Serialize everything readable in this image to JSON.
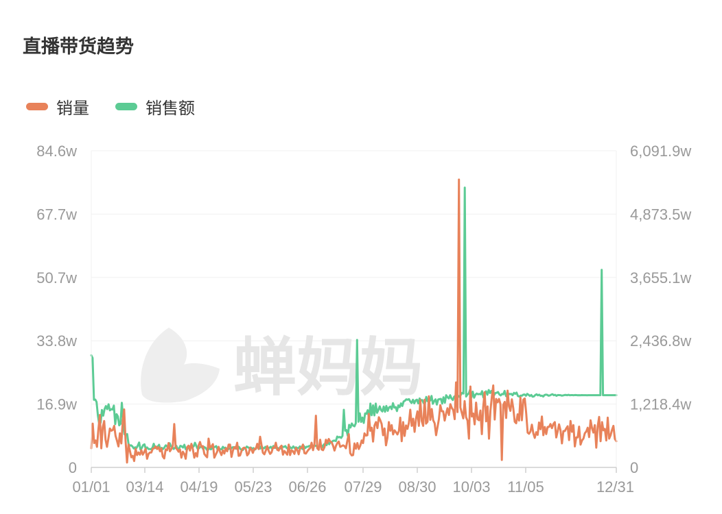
{
  "header": {
    "title": "直播带货趋势"
  },
  "watermark": {
    "text": "蝉妈妈"
  },
  "legend": [
    {
      "label": "销量",
      "color": "#e8825a"
    },
    {
      "label": "销售额",
      "color": "#5ccb94"
    }
  ],
  "chart_data": {
    "type": "line",
    "title": "直播带货趋势",
    "x_tick_labels": [
      "01/01",
      "03/14",
      "04/19",
      "05/23",
      "06/26",
      "07/29",
      "08/30",
      "10/03",
      "11/05",
      "12/31"
    ],
    "y_left": {
      "tick_labels": [
        "0",
        "16.9w",
        "33.8w",
        "50.7w",
        "67.7w",
        "84.6w"
      ],
      "ylim": [
        0,
        84.6
      ],
      "unit": "w"
    },
    "y_right": {
      "tick_labels": [
        "0",
        "1,218.4w",
        "2,436.8w",
        "3,655.1w",
        "4,873.5w",
        "6,091.9w"
      ],
      "ylim": [
        0,
        6091.9
      ],
      "unit": "w"
    },
    "grid": true,
    "legend_position": "top-left",
    "series": [
      {
        "name": "销量",
        "axis": "left",
        "color": "#e8825a",
        "values": [
          5.1,
          11.7,
          6.5,
          7.2,
          5.5,
          10.2,
          14.0,
          5.1,
          10.7,
          12.4,
          7.4,
          5.5,
          7.8,
          10.4,
          9.8,
          10.0,
          11.1,
          8.4,
          7.1,
          5.6,
          9.1,
          6.4,
          12.4,
          15.5,
          7.0,
          1.3,
          6.1,
          4.4,
          2.7,
          3.1,
          1.7,
          5.0,
          3.3,
          4.0,
          3.4,
          4.6,
          3.4,
          4.1,
          5.0,
          2.3,
          3.6,
          4.0,
          4.0,
          5.0,
          5.1,
          5.6,
          4.9,
          5.4,
          4.3,
          5.1,
          2.9,
          2.4,
          4.8,
          4.6,
          6.5,
          4.3,
          4.9,
          5.8,
          11.6,
          5.3,
          4.8,
          4.2,
          4.8,
          2.6,
          4.2,
          3.6,
          2.3,
          5.4,
          5.8,
          4.5,
          6.3,
          4.9,
          2.6,
          3.8,
          2.9,
          5.8,
          6.8,
          5.5,
          5.7,
          3.6,
          3.1,
          2.7,
          7.7,
          5.3,
          5.6,
          6.2,
          2.6,
          3.4,
          4.2,
          5.5,
          4.2,
          3.3,
          4.6,
          3.7,
          5.1,
          4.3,
          6.1,
          6.1,
          2.8,
          4.5,
          5.4,
          5.0,
          6.6,
          3.1,
          3.2,
          4.4,
          5.1,
          5.3,
          4.9,
          3.2,
          3.7,
          5.3,
          4.7,
          3.9,
          5.0,
          4.9,
          6.3,
          4.9,
          8.2,
          5.9,
          3.9,
          3.5,
          4.5,
          5.7,
          4.4,
          3.6,
          4.0,
          5.3,
          5.2,
          6.6,
          4.7,
          4.5,
          5.4,
          5.8,
          3.4,
          4.4,
          3.9,
          3.4,
          6.1,
          3.3,
          4.6,
          4.3,
          3.6,
          5.2,
          4.6,
          3.5,
          5.2,
          5.3,
          6.1,
          3.8,
          3.7,
          4.3,
          4.8,
          5.1,
          6.6,
          4.6,
          6.3,
          13.8,
          5.1,
          4.7,
          7.4,
          4.8,
          4.6,
          5.4,
          7.4,
          6.5,
          7.6,
          6.9,
          6.7,
          5.8,
          4.5,
          5.7,
          6.5,
          6.9,
          5.5,
          5.7,
          5.9,
          5.7,
          5.1,
          7.1,
          8.9,
          3.8,
          3.2,
          3.3,
          6.4,
          5.0,
          6.5,
          4.9,
          5.8,
          7.2,
          6.5,
          9.1,
          8.5,
          8.6,
          14.3,
          9.8,
          10.6,
          6.9,
          11.2,
          12.1,
          10.5,
          13.4,
          12.6,
          11.6,
          8.6,
          10.4,
          5.9,
          7.9,
          12.1,
          9.8,
          11.3,
          8.8,
          9.9,
          9.4,
          8.8,
          9.7,
          13.3,
          7.0,
          12.1,
          8.4,
          11.2,
          10.3,
          11.9,
          15.4,
          11.1,
          13.0,
          9.5,
          13.1,
          15.0,
          11.1,
          18.0,
          12.4,
          11.1,
          18.1,
          11.7,
          12.2,
          19.0,
          12.7,
          15.6,
          12.6,
          11.8,
          8.6,
          10.7,
          12.9,
          16.6,
          15.0,
          15.0,
          12.5,
          14.3,
          15.8,
          14.0,
          16.9,
          15.9,
          15.3,
          12.9,
          22.7,
          14.8,
          76.9,
          16.0,
          14.6,
          13.1,
          17.7,
          13.4,
          12.5,
          7.7,
          21.6,
          13.6,
          14.4,
          11.5,
          17.3,
          12.9,
          12.6,
          15.2,
          8.9,
          16.2,
          20.1,
          12.3,
          16.3,
          7.7,
          15.2,
          18.9,
          21.9,
          12.8,
          18.3,
          17.4,
          18.3,
          16.9,
          2.0,
          16.7,
          17.5,
          13.2,
          20.5,
          16.3,
          15.1,
          18.2,
          15.8,
          12.2,
          11.8,
          14.2,
          12.5,
          18.7,
          12.6,
          18.1,
          18.4,
          14.5,
          9.3,
          9.0,
          9.6,
          11.4,
          9.1,
          7.9,
          9.4,
          8.7,
          12.0,
          10.2,
          13.6,
          8.6,
          10.8,
          8.9,
          10.8,
          10.8,
          11.6,
          10.5,
          11.6,
          12.1,
          8.0,
          9.6,
          11.5,
          9.9,
          6.4,
          9.7,
          9.7,
          10.4,
          11.0,
          7.3,
          12.4,
          9.5,
          11.3,
          5.6,
          8.0,
          8.0,
          10.9,
          6.1,
          7.2,
          7.7,
          9.1,
          9.6,
          10.6,
          8.1,
          12.6,
          10.5,
          9.3,
          11.3,
          5.3,
          11.0,
          13.5,
          7.0,
          12.1,
          9.9,
          10.3,
          7.2,
          13.3,
          7.7,
          8.6,
          10.0,
          11.1,
          7.6,
          7.0
        ]
      },
      {
        "name": "销售额",
        "axis": "right",
        "color": "#5ccb94",
        "values": [
          2157,
          2104,
          1302,
          1306,
          1258,
          993,
          830,
          860,
          1104,
          994,
          1124,
          1180,
          1121,
          1215,
          1097,
          1121,
          1114,
          1190,
          832,
          1025,
          983,
          809,
          838,
          1242,
          933,
          637,
          618,
          641,
          453,
          418,
          424,
          402,
          364,
          387,
          372,
          421,
          478,
          341,
          374,
          428,
          444,
          353,
          384,
          354,
          354,
          350,
          377,
          455,
          372,
          384,
          402,
          435,
          335,
          376,
          354,
          382,
          425,
          403,
          378,
          464,
          402,
          393,
          355,
          380,
          416,
          353,
          358,
          415,
          405,
          383,
          435,
          352,
          341,
          398,
          405,
          383,
          392,
          403,
          474,
          414,
          358,
          368,
          392,
          407,
          356,
          393,
          374,
          338,
          342,
          372,
          347,
          375,
          381,
          396,
          409,
          342,
          371,
          351,
          347,
          395,
          370,
          380,
          345,
          349,
          368,
          354,
          385,
          389,
          389,
          395,
          350,
          396,
          358,
          339,
          335,
          370,
          366,
          401,
          385,
          367,
          382,
          359,
          372,
          341,
          376,
          384,
          405,
          362,
          418,
          373,
          366,
          396,
          356,
          350,
          379,
          396,
          358,
          412,
          381,
          375,
          378,
          360,
          379,
          360,
          398,
          394,
          410,
          372,
          360,
          404,
          377,
          371,
          404,
          371,
          386,
          369,
          374,
          403,
          373,
          353,
          410,
          372,
          397,
          398,
          413,
          416,
          392,
          411,
          426,
          411,
          410,
          378,
          430,
          423,
          390,
          443,
          451,
          428,
          487,
          446,
          490,
          491,
          513,
          515,
          506,
          594,
          578,
          587,
          567,
          606,
          1107,
          707,
          718,
          607,
          819,
          768,
          845,
          806,
          791,
          851,
          2453,
          878,
          1041,
          875,
          959,
          856,
          1039,
          1031,
          1101,
          921,
          1228,
          1003,
          1193,
          1001,
          1228,
          1051,
          1104,
          1175,
          1102,
          1076,
          1171,
          1071,
          1182,
          1088,
          1154,
          1171,
          1121,
          1236,
          1151,
          1160,
          1084,
          1193,
          1159,
          1231,
          1182,
          1269,
          1283,
          1309,
          1301,
          1313,
          1269,
          1240,
          1301,
          1233,
          1289,
          1303,
          1231,
          1327,
          1288,
          1296,
          1238,
          1224,
          1356,
          1274,
          1262,
          1289,
          1374,
          1223,
          1277,
          1310,
          1209,
          1307,
          1314,
          1318,
          1227,
          1349,
          1245,
          1389,
          1352,
          1326,
          1388,
          1328,
          1296,
          1359,
          1378,
          1341,
          1380,
          1355,
          1396,
          1433,
          1422,
          5384,
          1364,
          1403,
          1421,
          1496,
          1345,
          1457,
          1341,
          1398,
          1422,
          1407,
          1413,
          1406,
          1466,
          1346,
          1426,
          1464,
          1398,
          1489,
          1432,
          1471,
          1388,
          1386,
          1431,
          1436,
          1451,
          1404,
          1385,
          1412,
          1407,
          1471,
          1374,
          1356,
          1416,
          1410,
          1415,
          1389,
          1434,
          1415,
          1439,
          1373,
          1363,
          1380,
          1379,
          1399,
          1403,
          1378,
          1415,
          1397,
          1374,
          1394,
          1361,
          1365,
          1393,
          1407,
          1386,
          1399,
          1377,
          1381,
          1364,
          1392,
          1400,
          1397,
          1379,
          1385,
          1399,
          1408,
          1389,
          1396,
          1377,
          1393,
          1391,
          1390,
          1380,
          1385,
          1392,
          1395,
          1388,
          1397,
          1388,
          1391,
          1391,
          1389,
          1393,
          1391,
          1389,
          1390,
          1389,
          1391,
          1390,
          1390,
          1390,
          1389,
          1390,
          1390,
          1390,
          1390,
          1390,
          1390,
          1390,
          1390,
          1390,
          1390,
          3800,
          1390,
          1390,
          1390,
          1390,
          1390,
          1390,
          1390,
          1390,
          1390,
          1390,
          1390
        ]
      }
    ]
  }
}
